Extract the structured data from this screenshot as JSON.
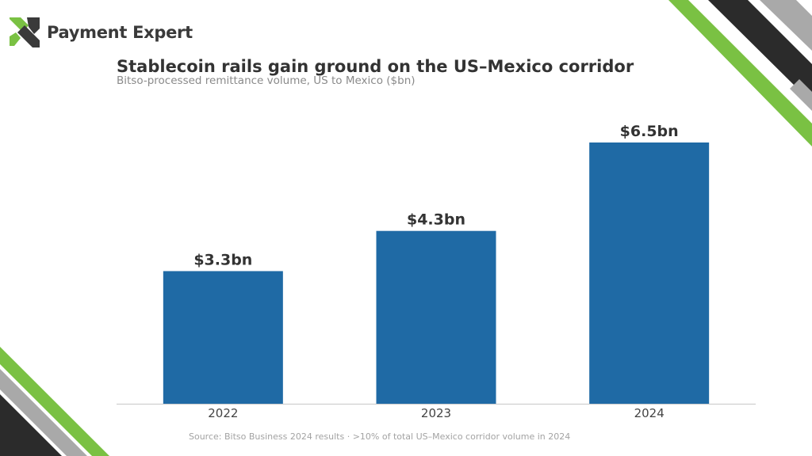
{
  "brand": {
    "name": "Payment Expert",
    "logo_icon": "payment-expert-x-logo",
    "logo_colors": {
      "green": "#7ac143",
      "dark": "#3a3a3a"
    }
  },
  "chart_data": {
    "type": "bar",
    "title": "Stablecoin rails gain ground on the US–Mexico corridor",
    "subtitle": "Bitso-processed remittance volume, US to Mexico ($bn)",
    "categories": [
      "2022",
      "2023",
      "2024"
    ],
    "values": [
      3.3,
      4.3,
      6.5
    ],
    "data_labels": [
      "$3.3bn",
      "$4.3bn",
      "$6.5bn"
    ],
    "ylim": [
      0,
      6.5
    ],
    "grid": false,
    "bar_color": "#1f6aa5",
    "source": "Source: Bitso Business 2024 results · >10% of total US–Mexico corridor volume in 2024"
  },
  "decor_colors": {
    "green": "#7ac143",
    "dark": "#2b2b2b",
    "grey": "#a9a9a9"
  }
}
